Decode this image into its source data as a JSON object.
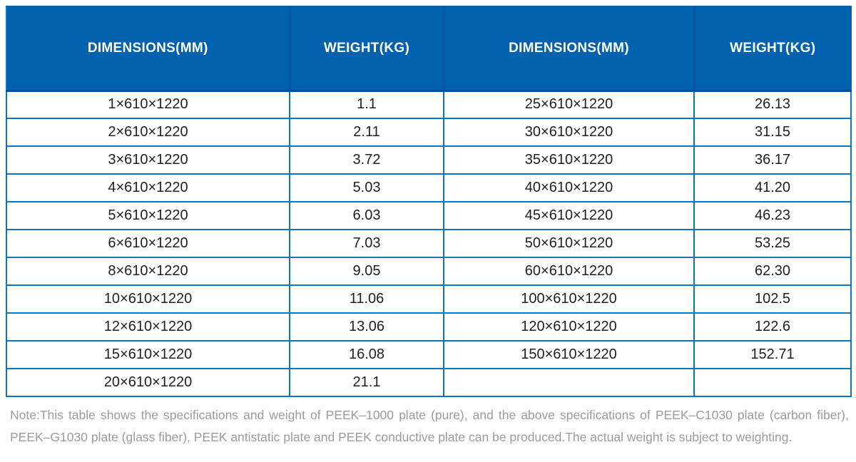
{
  "colors": {
    "header_bg": "#0061af",
    "header_divider": "#0b55a6",
    "header_bottom_line": "#04509e",
    "grid_border": "#0c76bd",
    "body_text": "#1f1f1f",
    "note_text": "#9c9c9c"
  },
  "table": {
    "headers": [
      "DIMENSIONS(MM)",
      "WEIGHT(KG)",
      "DIMENSIONS(MM)",
      "WEIGHT(KG)"
    ],
    "rows": [
      [
        "1×610×1220",
        "1.1",
        "25×610×1220",
        "26.13"
      ],
      [
        "2×610×1220",
        "2.11",
        "30×610×1220",
        "31.15"
      ],
      [
        "3×610×1220",
        "3.72",
        "35×610×1220",
        "36.17"
      ],
      [
        "4×610×1220",
        "5.03",
        "40×610×1220",
        "41.20"
      ],
      [
        "5×610×1220",
        "6.03",
        "45×610×1220",
        "46.23"
      ],
      [
        "6×610×1220",
        "7.03",
        "50×610×1220",
        "53.25"
      ],
      [
        "8×610×1220",
        "9.05",
        "60×610×1220",
        "62.30"
      ],
      [
        "10×610×1220",
        "11.06",
        "100×610×1220",
        "102.5"
      ],
      [
        "12×610×1220",
        "13.06",
        "120×610×1220",
        "122.6"
      ],
      [
        "15×610×1220",
        "16.08",
        "150×610×1220",
        "152.71"
      ],
      [
        "20×610×1220",
        "21.1",
        "",
        ""
      ]
    ]
  },
  "note": {
    "text": "Note:This table shows the specifications and weight of PEEK–1000 plate (pure), and the above specifications of PEEK–C1030 plate (carbon fiber), PEEK–G1030 plate (glass fiber), PEEK antistatic plate and PEEK conductive plate can be produced.The actual weight is subject to weighting."
  }
}
